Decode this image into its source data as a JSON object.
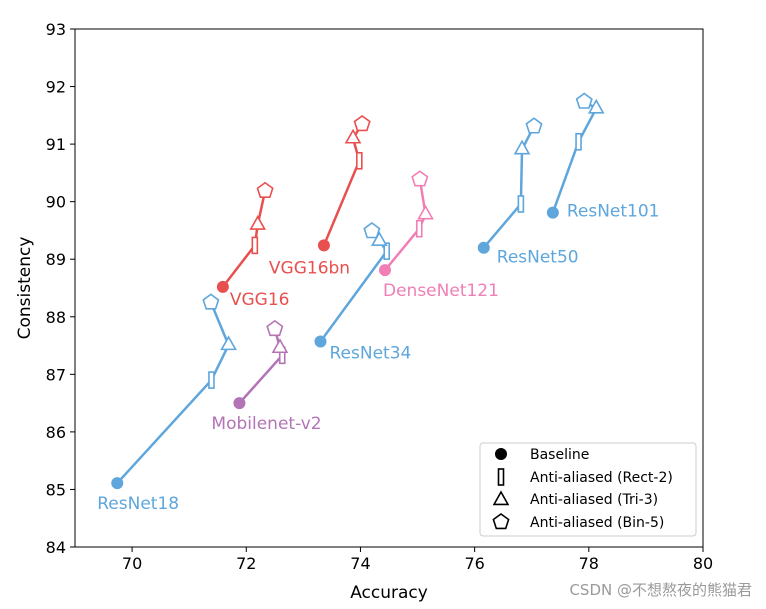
{
  "chart_data": {
    "type": "line",
    "title": "",
    "xlabel": "Accuracy",
    "ylabel": "Consistency",
    "xlim": [
      69,
      80
    ],
    "ylim": [
      84,
      93
    ],
    "xticks": [
      "70",
      "72",
      "74",
      "76",
      "78",
      "80"
    ],
    "yticks": [
      "84",
      "85",
      "86",
      "87",
      "88",
      "89",
      "90",
      "91",
      "92",
      "93"
    ],
    "series": [
      {
        "name": "ResNet18",
        "color": "#5ea6dc",
        "points": [
          {
            "x": 69.74,
            "y": 85.11
          },
          {
            "x": 71.39,
            "y": 86.9
          },
          {
            "x": 71.69,
            "y": 87.51
          },
          {
            "x": 71.38,
            "y": 88.25
          }
        ]
      },
      {
        "name": "ResNet34",
        "color": "#5ea6dc",
        "points": [
          {
            "x": 73.3,
            "y": 87.57
          },
          {
            "x": 74.46,
            "y": 89.14
          },
          {
            "x": 74.33,
            "y": 89.32
          },
          {
            "x": 74.2,
            "y": 89.49
          }
        ]
      },
      {
        "name": "ResNet50",
        "color": "#5ea6dc",
        "points": [
          {
            "x": 76.16,
            "y": 89.2
          },
          {
            "x": 76.81,
            "y": 89.96
          },
          {
            "x": 76.83,
            "y": 90.91
          },
          {
            "x": 77.04,
            "y": 91.31
          }
        ]
      },
      {
        "name": "ResNet101",
        "color": "#5ea6dc",
        "points": [
          {
            "x": 77.37,
            "y": 89.81
          },
          {
            "x": 77.82,
            "y": 91.04
          },
          {
            "x": 78.13,
            "y": 91.62
          },
          {
            "x": 77.92,
            "y": 91.74
          }
        ]
      },
      {
        "name": "VGG16",
        "color": "#e8504f",
        "points": [
          {
            "x": 71.59,
            "y": 88.52
          },
          {
            "x": 72.15,
            "y": 89.24
          },
          {
            "x": 72.2,
            "y": 89.6
          },
          {
            "x": 72.33,
            "y": 90.19
          }
        ]
      },
      {
        "name": "VGG16bn",
        "color": "#e8504f",
        "points": [
          {
            "x": 73.36,
            "y": 89.24
          },
          {
            "x": 73.98,
            "y": 90.71
          },
          {
            "x": 73.87,
            "y": 91.1
          },
          {
            "x": 74.03,
            "y": 91.35
          }
        ]
      },
      {
        "name": "DenseNet121",
        "color": "#ef7fb5",
        "points": [
          {
            "x": 74.43,
            "y": 88.81
          },
          {
            "x": 75.03,
            "y": 89.53
          },
          {
            "x": 75.14,
            "y": 89.78
          },
          {
            "x": 75.04,
            "y": 90.39
          }
        ]
      },
      {
        "name": "Mobilenet-v2",
        "color": "#b374b7",
        "points": [
          {
            "x": 71.88,
            "y": 86.5
          },
          {
            "x": 72.63,
            "y": 87.33
          },
          {
            "x": 72.59,
            "y": 87.46
          },
          {
            "x": 72.5,
            "y": 87.79
          }
        ]
      }
    ],
    "legend": {
      "position": "bottom-right",
      "entries": [
        {
          "marker": "circle",
          "label": "Baseline"
        },
        {
          "marker": "rect",
          "label": "Anti-aliased (Rect-2)"
        },
        {
          "marker": "triangle",
          "label": "Anti-aliased (Tri-3)"
        },
        {
          "marker": "pentagon",
          "label": "Anti-aliased (Bin-5)"
        }
      ]
    }
  },
  "watermark": "CSDN @不想熬夜的熊猫君"
}
